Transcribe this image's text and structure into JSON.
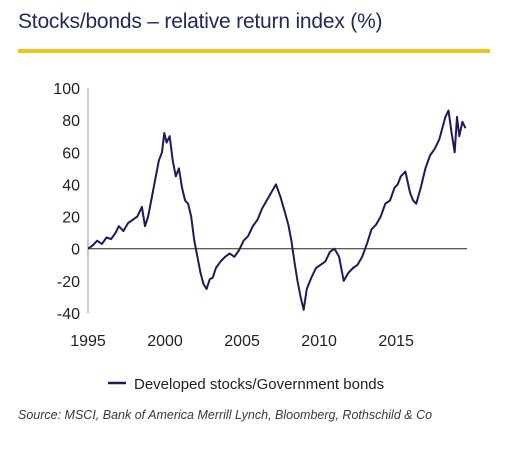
{
  "title": "Stocks/bonds – relative return index (%)",
  "source": "Source: MSCI, Bank of America Merrill Lynch, Bloomberg, Rothschild & Co",
  "colors": {
    "line": "#1f1a5a",
    "accent": "#f2c21b",
    "title": "#1f2a5a"
  },
  "chart_data": {
    "type": "line",
    "title": "Stocks/bonds – relative return index (%)",
    "xlabel": "",
    "ylabel": "",
    "xlim": [
      1995.0,
      2019.6
    ],
    "ylim": [
      -40,
      100
    ],
    "x_ticks": [
      1995,
      2000,
      2005,
      2010,
      2015
    ],
    "x_tick_labels": [
      "1995",
      "2000",
      "2005",
      "2010",
      "2015"
    ],
    "y_ticks": [
      -40,
      -20,
      0,
      20,
      40,
      60,
      80,
      100
    ],
    "y_tick_labels": [
      "-40",
      "-20",
      "0",
      "20",
      "40",
      "60",
      "80",
      "100"
    ],
    "grid": false,
    "zero_line": true,
    "legend": "bottom-center",
    "series": [
      {
        "name": "Developed stocks/Government bonds",
        "color": "#1f1a5a",
        "x": [
          1995.0,
          1995.3,
          1995.6,
          1995.9,
          1996.2,
          1996.5,
          1996.8,
          1997.0,
          1997.3,
          1997.6,
          1997.9,
          1998.2,
          1998.5,
          1998.7,
          1998.9,
          1999.1,
          1999.4,
          1999.6,
          1999.8,
          1999.95,
          2000.1,
          2000.3,
          2000.5,
          2000.7,
          2000.9,
          2001.1,
          2001.3,
          2001.5,
          2001.7,
          2001.9,
          2002.1,
          2002.3,
          2002.5,
          2002.7,
          2002.9,
          2003.1,
          2003.3,
          2003.6,
          2003.9,
          2004.2,
          2004.5,
          2004.8,
          2005.1,
          2005.4,
          2005.7,
          2006.0,
          2006.3,
          2006.6,
          2006.9,
          2007.2,
          2007.5,
          2007.8,
          2008.0,
          2008.2,
          2008.4,
          2008.6,
          2008.8,
          2009.0,
          2009.2,
          2009.5,
          2009.8,
          2010.1,
          2010.4,
          2010.7,
          2011.0,
          2011.3,
          2011.6,
          2011.9,
          2012.2,
          2012.5,
          2012.8,
          2013.1,
          2013.4,
          2013.7,
          2014.0,
          2014.3,
          2014.6,
          2014.9,
          2015.1,
          2015.3,
          2015.6,
          2015.9,
          2016.1,
          2016.3,
          2016.6,
          2016.9,
          2017.2,
          2017.5,
          2017.8,
          2018.0,
          2018.2,
          2018.4,
          2018.6,
          2018.8,
          2018.95,
          2019.1,
          2019.3,
          2019.5
        ],
        "values": [
          0,
          2,
          5,
          3,
          7,
          6,
          10,
          14,
          11,
          16,
          18,
          20,
          26,
          14,
          20,
          30,
          45,
          55,
          60,
          72,
          66,
          70,
          55,
          45,
          50,
          38,
          30,
          28,
          20,
          5,
          -5,
          -15,
          -22,
          -25,
          -19,
          -18,
          -12,
          -8,
          -5,
          -3,
          -5,
          -1,
          5,
          8,
          14,
          18,
          25,
          30,
          35,
          40,
          32,
          22,
          15,
          5,
          -8,
          -20,
          -30,
          -38,
          -25,
          -18,
          -12,
          -10,
          -8,
          -2,
          0,
          -5,
          -20,
          -15,
          -12,
          -10,
          -5,
          3,
          12,
          15,
          20,
          28,
          30,
          38,
          40,
          45,
          48,
          35,
          30,
          28,
          38,
          50,
          58,
          62,
          68,
          75,
          82,
          86,
          72,
          60,
          82,
          70,
          79,
          75
        ]
      }
    ]
  }
}
